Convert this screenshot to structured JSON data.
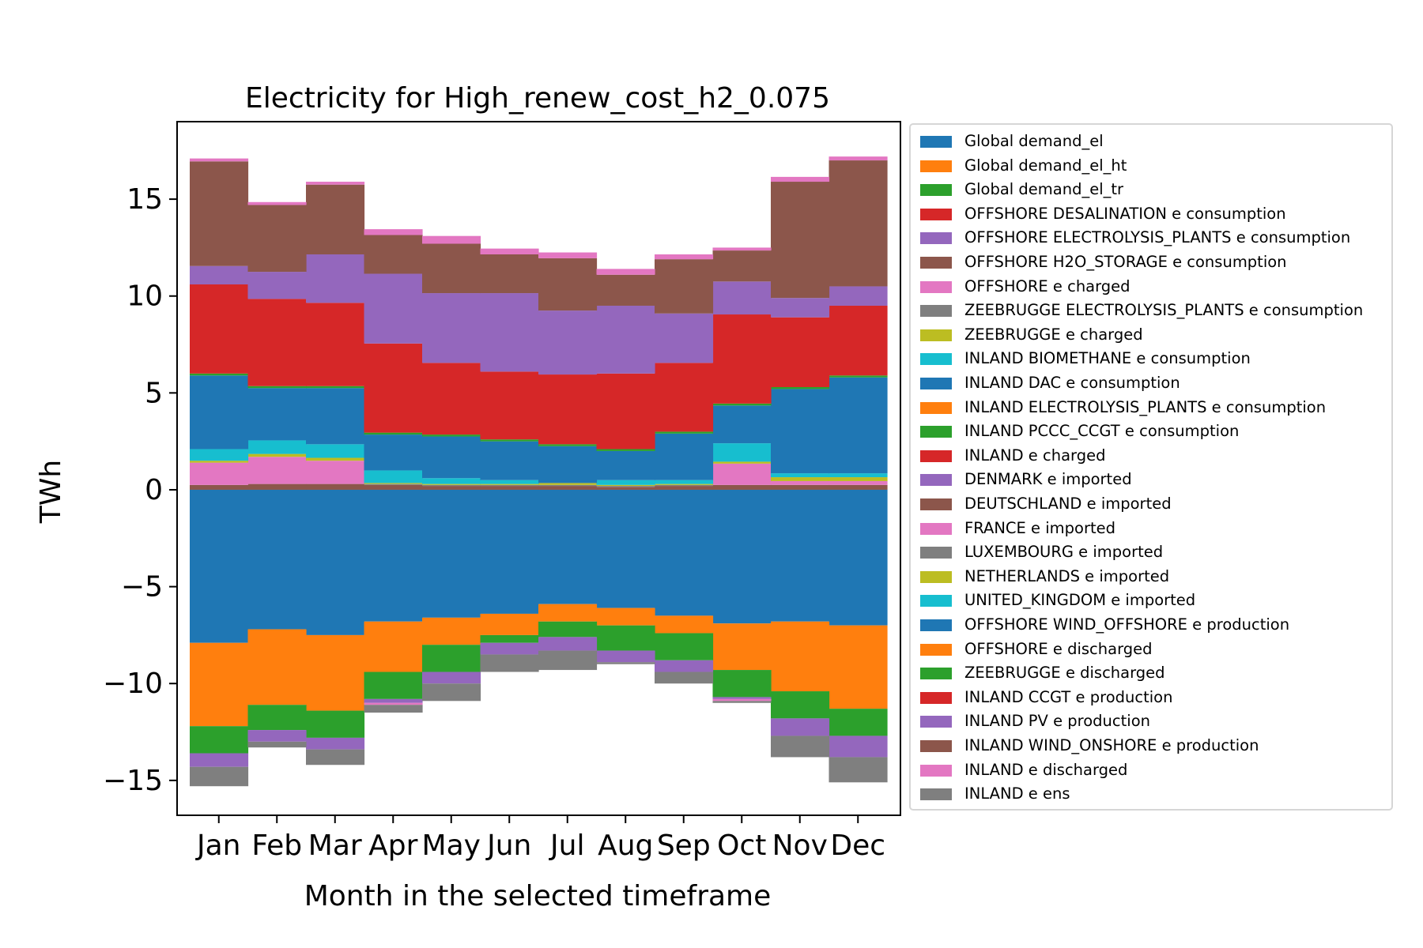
{
  "chart_data": {
    "type": "area",
    "title": "Electricity for High_renew_cost_h2_0.075",
    "xlabel": "Month in the selected timeframe",
    "ylabel": "TWh",
    "ylim": [
      -16.8,
      19
    ],
    "yticks": [
      -15,
      -10,
      -5,
      0,
      5,
      10,
      15
    ],
    "yticklabels": [
      "−15",
      "−10",
      "−5",
      "0",
      "5",
      "10",
      "15"
    ],
    "categories": [
      "Jan",
      "Feb",
      "Mar",
      "Apr",
      "May",
      "Jun",
      "Jul",
      "Aug",
      "Sep",
      "Oct",
      "Nov",
      "Dec"
    ],
    "grid": false,
    "legend_position": "right",
    "series": [
      {
        "name": "Global demand_el",
        "color": "#1f77b4",
        "values": [
          0,
          0,
          0,
          0,
          0,
          0,
          0,
          0,
          0,
          0,
          0,
          0
        ]
      },
      {
        "name": "Global demand_el_ht",
        "color": "#ff7f0e",
        "values": [
          0,
          0,
          0,
          0,
          0,
          0,
          0,
          0,
          0,
          0,
          0,
          0
        ]
      },
      {
        "name": "Global demand_el_tr",
        "color": "#2ca02c",
        "values": [
          0,
          0,
          0,
          0,
          0,
          0,
          0,
          0,
          0,
          0,
          0,
          0
        ]
      },
      {
        "name": "OFFSHORE DESALINATION e consumption",
        "color": "#d62728",
        "values": [
          0,
          0,
          0,
          0,
          0,
          0,
          0,
          0,
          0,
          0,
          0,
          0
        ]
      },
      {
        "name": "OFFSHORE ELECTROLYSIS_PLANTS e consumption",
        "color": "#9467bd",
        "values": [
          0,
          0,
          0,
          0,
          0,
          0,
          0,
          0,
          0,
          0,
          0,
          0
        ]
      },
      {
        "name": "OFFSHORE H2O_STORAGE e consumption",
        "color": "#8c564b",
        "values": [
          0.25,
          0.3,
          0.3,
          0.25,
          0.2,
          0.2,
          0.2,
          0.15,
          0.2,
          0.25,
          0.25,
          0.25
        ]
      },
      {
        "name": "OFFSHORE e charged",
        "color": "#e377c2",
        "values": [
          1.15,
          1.4,
          1.2,
          0,
          0,
          0,
          0,
          0,
          0,
          1.1,
          0.2,
          0.2
        ]
      },
      {
        "name": "ZEEBRUGGE ELECTROLYSIS_PLANTS e consumption",
        "color": "#7f7f7f",
        "values": [
          0,
          0,
          0,
          0.05,
          0.05,
          0.05,
          0.05,
          0.05,
          0.05,
          0,
          0,
          0
        ]
      },
      {
        "name": "ZEEBRUGGE e charged",
        "color": "#bcbd22",
        "values": [
          0.1,
          0.15,
          0.15,
          0.05,
          0.05,
          0.05,
          0.1,
          0.05,
          0.05,
          0.1,
          0.2,
          0.2
        ]
      },
      {
        "name": "INLAND BIOMETHANE e consumption",
        "color": "#17becf",
        "values": [
          0.6,
          0.7,
          0.7,
          0.65,
          0.3,
          0.2,
          0,
          0.25,
          0.2,
          0.95,
          0.2,
          0.2
        ]
      },
      {
        "name": "INLAND DAC e consumption",
        "color": "#1f77b4",
        "values": [
          3.8,
          2.7,
          2.9,
          1.85,
          2.15,
          2.0,
          1.9,
          1.5,
          2.4,
          1.95,
          4.35,
          4.95
        ]
      },
      {
        "name": "INLAND ELECTROLYSIS_PLANTS e consumption",
        "color": "#ff7f0e",
        "values": [
          0,
          0,
          0,
          0,
          0,
          0,
          0,
          0,
          0,
          0,
          0,
          0
        ]
      },
      {
        "name": "INLAND PCCC_CCGT e consumption",
        "color": "#2ca02c",
        "values": [
          0.1,
          0.1,
          0.1,
          0.1,
          0.1,
          0.1,
          0.1,
          0.1,
          0.1,
          0.1,
          0.1,
          0.1
        ]
      },
      {
        "name": "INLAND e charged",
        "color": "#d62728",
        "values": [
          4.6,
          4.5,
          4.3,
          4.6,
          3.7,
          3.5,
          3.6,
          3.9,
          3.55,
          4.6,
          3.6,
          3.6
        ]
      },
      {
        "name": "DENMARK e imported",
        "color": "#9467bd",
        "values": [
          0.95,
          1.4,
          2.5,
          3.6,
          3.6,
          4.05,
          3.3,
          3.5,
          2.55,
          1.7,
          1.0,
          1.0
        ]
      },
      {
        "name": "DEUTSCHLAND e imported",
        "color": "#8c564b",
        "values": [
          5.4,
          3.45,
          3.6,
          2.0,
          2.55,
          2.0,
          2.7,
          1.6,
          2.8,
          1.6,
          6.0,
          6.5
        ]
      },
      {
        "name": "FRANCE e imported",
        "color": "#e377c2",
        "values": [
          0.15,
          0.15,
          0.15,
          0.3,
          0.4,
          0.3,
          0.3,
          0.3,
          0.25,
          0.15,
          0.25,
          0.2
        ]
      },
      {
        "name": "LUXEMBOURG e imported",
        "color": "#7f7f7f",
        "values": [
          0,
          0,
          0,
          0,
          0,
          0,
          0,
          0,
          0,
          0,
          0,
          0
        ]
      },
      {
        "name": "NETHERLANDS e imported",
        "color": "#bcbd22",
        "values": [
          0,
          0,
          0,
          0,
          0,
          0,
          0,
          0,
          0,
          0,
          0,
          0
        ]
      },
      {
        "name": "UNITED_KINGDOM e imported",
        "color": "#17becf",
        "values": [
          0,
          0,
          0,
          0,
          0,
          0,
          0,
          0,
          0,
          0,
          0,
          0
        ]
      },
      {
        "name": "OFFSHORE WIND_OFFSHORE e production",
        "color": "#1f77b4",
        "values": [
          -7.9,
          -7.2,
          -7.5,
          -6.8,
          -6.6,
          -6.4,
          -5.9,
          -6.1,
          -6.5,
          -6.9,
          -6.8,
          -7.0
        ]
      },
      {
        "name": "OFFSHORE e discharged",
        "color": "#ff7f0e",
        "values": [
          -4.3,
          -3.9,
          -3.9,
          -2.6,
          -1.4,
          -1.1,
          -0.9,
          -0.9,
          -0.9,
          -2.4,
          -3.6,
          -4.3
        ]
      },
      {
        "name": "ZEEBRUGGE e discharged",
        "color": "#2ca02c",
        "values": [
          -1.4,
          -1.3,
          -1.4,
          -1.4,
          -1.4,
          -0.4,
          -0.8,
          -1.3,
          -1.4,
          -1.4,
          -1.4,
          -1.4
        ]
      },
      {
        "name": "INLAND CCGT e production",
        "color": "#d62728",
        "values": [
          0,
          0,
          0,
          0,
          0,
          0,
          0,
          0,
          0,
          0,
          0,
          0
        ]
      },
      {
        "name": "INLAND PV e production",
        "color": "#9467bd",
        "values": [
          -0.7,
          -0.6,
          -0.6,
          -0.2,
          -0.6,
          -0.6,
          -0.7,
          -0.6,
          -0.6,
          -0.1,
          -0.9,
          -1.1
        ]
      },
      {
        "name": "INLAND WIND_ONSHORE e production",
        "color": "#8c564b",
        "values": [
          0,
          0,
          0,
          0,
          0,
          0,
          0,
          0,
          0,
          0,
          0,
          0
        ]
      },
      {
        "name": "INLAND e discharged",
        "color": "#e377c2",
        "values": [
          0,
          0,
          0,
          -0.1,
          0,
          0,
          0,
          0,
          0,
          -0.1,
          0,
          0
        ]
      },
      {
        "name": "INLAND e ens",
        "color": "#7f7f7f",
        "values": [
          -1.0,
          -0.3,
          -0.8,
          -0.4,
          -0.9,
          -0.9,
          -1.0,
          -0.1,
          -0.6,
          -0.1,
          -1.1,
          -1.3
        ]
      }
    ]
  }
}
